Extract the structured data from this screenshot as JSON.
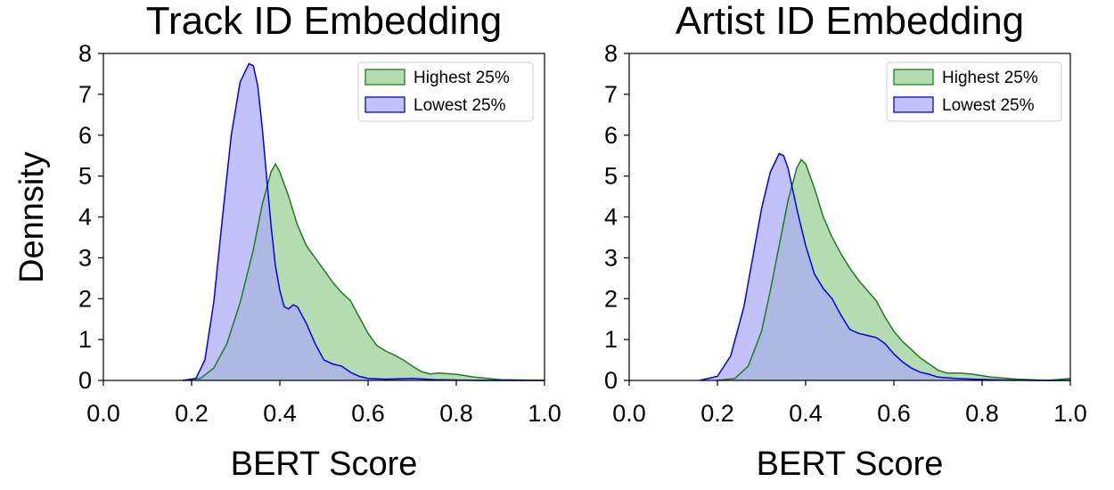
{
  "figure": {
    "shared_ylabel": "Dennsity"
  },
  "chart_data": [
    {
      "type": "area",
      "title": "Track ID Embedding",
      "xlabel": "BERT Score",
      "ylabel": "Dennsity",
      "xlim": [
        0.0,
        1.0
      ],
      "ylim": [
        0,
        8
      ],
      "xticks": [
        "0.0",
        "0.2",
        "0.4",
        "0.6",
        "0.8",
        "1.0"
      ],
      "yticks": [
        "0",
        "1",
        "2",
        "3",
        "4",
        "5",
        "6",
        "7",
        "8"
      ],
      "grid": false,
      "legend_position": "top-right",
      "series": [
        {
          "name": "Highest 25%",
          "fill": "#b5dcb0",
          "stroke": "#1a7f1a",
          "x": [
            0.18,
            0.22,
            0.25,
            0.28,
            0.31,
            0.34,
            0.36,
            0.38,
            0.39,
            0.4,
            0.42,
            0.44,
            0.46,
            0.48,
            0.5,
            0.52,
            0.54,
            0.56,
            0.58,
            0.6,
            0.62,
            0.64,
            0.66,
            0.68,
            0.7,
            0.72,
            0.74,
            0.76,
            0.8,
            0.84,
            0.9,
            1.0
          ],
          "y": [
            0.0,
            0.05,
            0.3,
            0.9,
            1.9,
            3.2,
            4.3,
            5.1,
            5.3,
            5.1,
            4.5,
            3.8,
            3.3,
            3.0,
            2.7,
            2.4,
            2.15,
            1.95,
            1.55,
            1.15,
            0.85,
            0.72,
            0.62,
            0.5,
            0.35,
            0.22,
            0.16,
            0.18,
            0.15,
            0.08,
            0.02,
            0.0
          ]
        },
        {
          "name": "Lowest 25%",
          "fill": "#aaaaf6",
          "stroke": "#0000ee",
          "x": [
            0.18,
            0.21,
            0.23,
            0.25,
            0.27,
            0.29,
            0.31,
            0.33,
            0.34,
            0.35,
            0.36,
            0.37,
            0.38,
            0.39,
            0.4,
            0.41,
            0.42,
            0.43,
            0.44,
            0.46,
            0.48,
            0.5,
            0.52,
            0.54,
            0.56,
            0.58,
            0.6,
            0.64,
            0.7,
            0.75,
            0.85,
            1.0
          ],
          "y": [
            0.0,
            0.05,
            0.5,
            1.9,
            4.0,
            6.0,
            7.3,
            7.75,
            7.7,
            7.2,
            6.2,
            5.0,
            3.8,
            2.8,
            2.2,
            1.8,
            1.75,
            1.85,
            1.8,
            1.4,
            0.9,
            0.5,
            0.4,
            0.35,
            0.2,
            0.1,
            0.05,
            0.03,
            0.05,
            0.02,
            0.0,
            0.0
          ]
        }
      ]
    },
    {
      "type": "area",
      "title": "Artist ID Embedding",
      "xlabel": "BERT Score",
      "ylabel": "",
      "xlim": [
        0.0,
        1.0
      ],
      "ylim": [
        0,
        8
      ],
      "xticks": [
        "0.0",
        "0.2",
        "0.4",
        "0.6",
        "0.8",
        "1.0"
      ],
      "yticks": [
        "0",
        "1",
        "2",
        "3",
        "4",
        "5",
        "6",
        "7",
        "8"
      ],
      "grid": false,
      "legend_position": "top-right",
      "series": [
        {
          "name": "Highest 25%",
          "fill": "#b5dcb0",
          "stroke": "#1a7f1a",
          "x": [
            0.2,
            0.24,
            0.27,
            0.3,
            0.32,
            0.34,
            0.36,
            0.38,
            0.39,
            0.4,
            0.42,
            0.44,
            0.46,
            0.48,
            0.5,
            0.52,
            0.54,
            0.56,
            0.58,
            0.6,
            0.62,
            0.64,
            0.66,
            0.68,
            0.7,
            0.72,
            0.75,
            0.78,
            0.82,
            0.88,
            0.95,
            1.0
          ],
          "y": [
            0.0,
            0.05,
            0.35,
            1.2,
            2.2,
            3.3,
            4.4,
            5.2,
            5.4,
            5.3,
            4.7,
            4.0,
            3.5,
            3.1,
            2.75,
            2.45,
            2.2,
            1.95,
            1.55,
            1.2,
            0.95,
            0.75,
            0.55,
            0.4,
            0.25,
            0.18,
            0.18,
            0.15,
            0.08,
            0.03,
            0.0,
            0.05
          ]
        },
        {
          "name": "Lowest 25%",
          "fill": "#aaaaf6",
          "stroke": "#0000ee",
          "x": [
            0.16,
            0.2,
            0.23,
            0.26,
            0.28,
            0.3,
            0.32,
            0.34,
            0.35,
            0.36,
            0.38,
            0.4,
            0.42,
            0.44,
            0.46,
            0.48,
            0.5,
            0.52,
            0.54,
            0.56,
            0.58,
            0.6,
            0.62,
            0.64,
            0.66,
            0.68,
            0.7,
            0.74,
            0.78,
            0.84,
            0.92,
            1.0
          ],
          "y": [
            0.0,
            0.1,
            0.6,
            1.8,
            3.0,
            4.2,
            5.1,
            5.55,
            5.5,
            5.2,
            4.2,
            3.3,
            2.6,
            2.25,
            2.0,
            1.6,
            1.25,
            1.15,
            1.1,
            1.05,
            0.9,
            0.65,
            0.45,
            0.3,
            0.2,
            0.15,
            0.08,
            0.05,
            0.03,
            0.01,
            0.0,
            0.0
          ]
        }
      ]
    }
  ]
}
